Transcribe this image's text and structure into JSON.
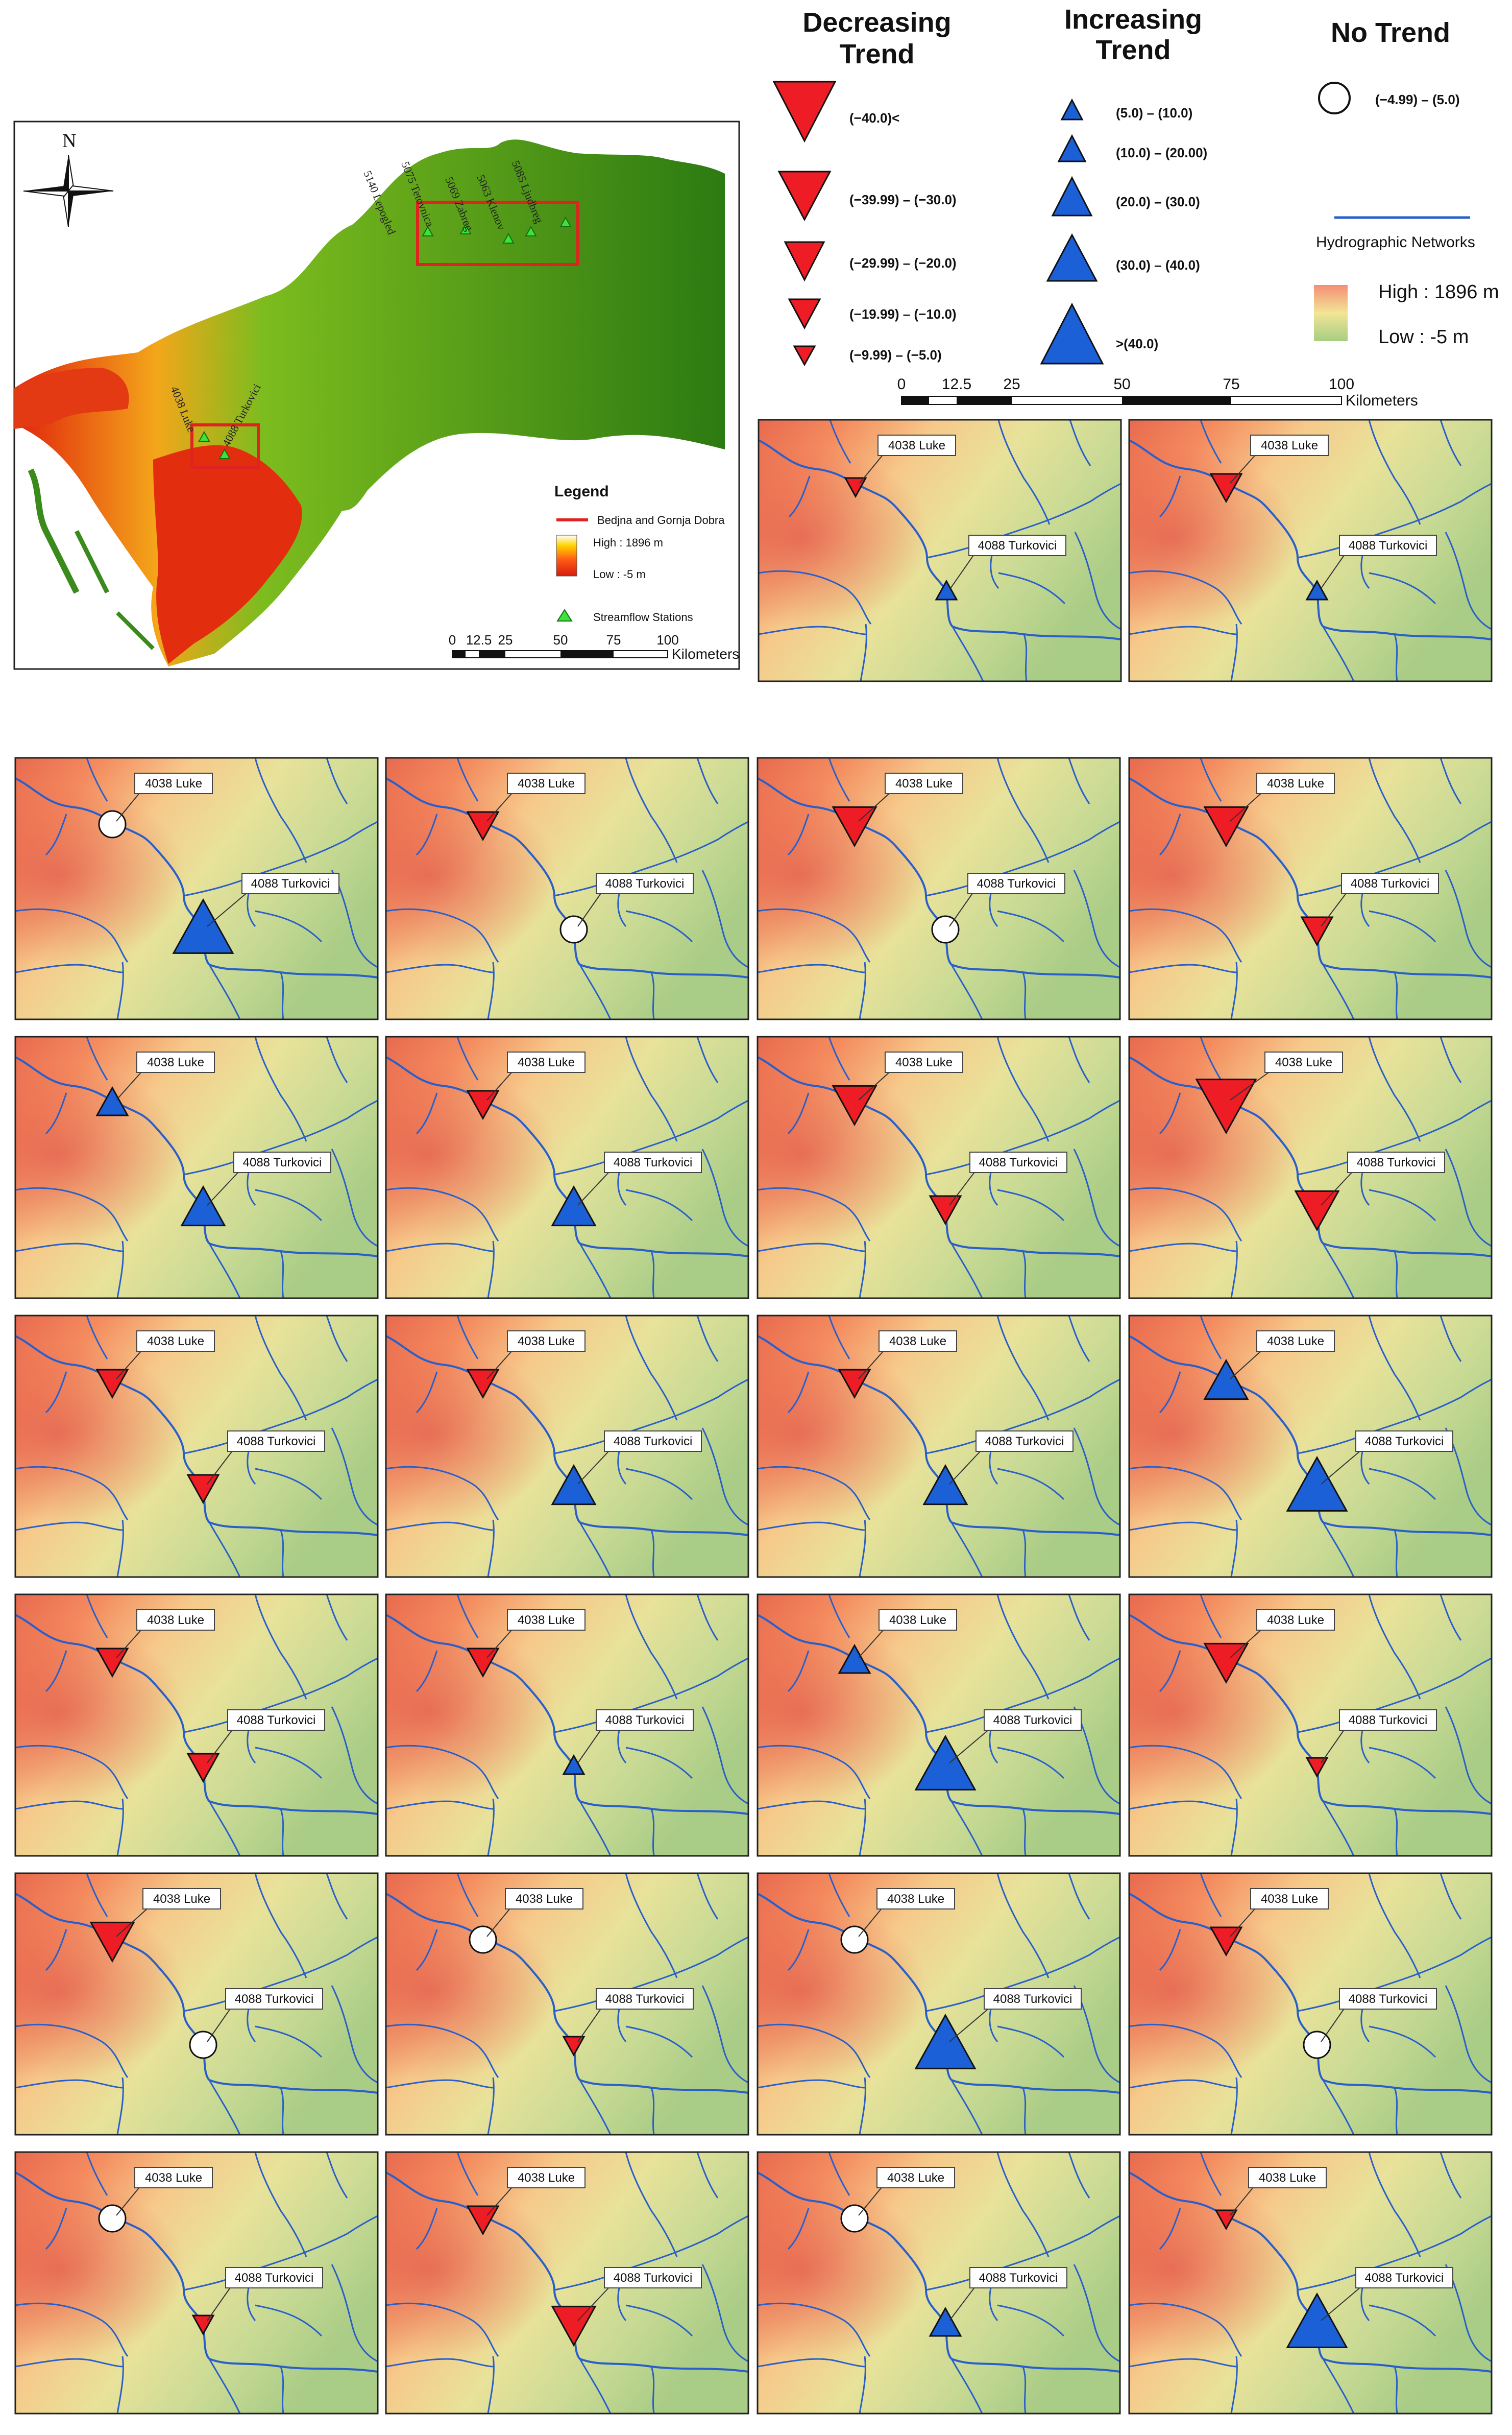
{
  "overview": {
    "north_label": "N",
    "legend_title": "Legend",
    "legend_line_label": "Bedjna and Gornja Dobra",
    "legend_high": "High : 1896 m",
    "legend_low": "Low : -5 m",
    "legend_station": "Streamflow Stations",
    "scale_ticks": [
      "0",
      "12.5",
      "25",
      "50",
      "75",
      "100"
    ],
    "scale_unit": "Kilometers",
    "stations": [
      "5140 Lepogled",
      "5075 Tetovnica",
      "5063 Klenov",
      "5069 Zabreg",
      "5085 Ljudbreg",
      "4038 Luke",
      "4088 Turkovici"
    ]
  },
  "trend_legend": {
    "decreasing_title": [
      "Decreasing",
      "Trend"
    ],
    "increasing_title": [
      "Increasing",
      "Trend"
    ],
    "notrend_title": "No Trend",
    "decreasing": [
      "(−40.0)<",
      "(−39.99) – (−30.0)",
      "(−29.99) – (−20.0)",
      "(−19.99) – (−10.0)",
      "(−9.99) – (−5.0)"
    ],
    "increasing": [
      "(5.0) – (10.0)",
      "(10.0) – (20.00)",
      "(20.0) – (30.0)",
      "(30.0) – (40.0)",
      ">(40.0)"
    ],
    "notrend": "(−4.99) – (5.0)",
    "hydro_label": "Hydrographic Networks",
    "high_label": "High : 1896 m",
    "low_label": "Low : -5 m",
    "scale_ticks": [
      "0",
      "12.5",
      "25",
      "50",
      "75",
      "100"
    ],
    "scale_unit": "Kilometers"
  },
  "station_labels": {
    "luke": "4038 Luke",
    "turk": "4088 Turkovici"
  },
  "colors": {
    "decrease": "#ee1c24",
    "increase": "#1c60d8",
    "notrend": "#ffffff",
    "river": "#2a5fc9",
    "legend_line": "#e0231f"
  },
  "panels": [
    {
      "luke": "d1",
      "turk": "u1"
    },
    {
      "luke": "d2",
      "turk": "u1"
    },
    {
      "luke": "n",
      "turk": "u4"
    },
    {
      "luke": "d2",
      "turk": "n"
    },
    {
      "luke": "d3",
      "turk": "n"
    },
    {
      "luke": "d3",
      "turk": "d2"
    },
    {
      "luke": "u2",
      "turk": "u3"
    },
    {
      "luke": "d2",
      "turk": "u3"
    },
    {
      "luke": "d3",
      "turk": "d2"
    },
    {
      "luke": "d4",
      "turk": "d3"
    },
    {
      "luke": "d2",
      "turk": "d2"
    },
    {
      "luke": "d2",
      "turk": "u3"
    },
    {
      "luke": "d2",
      "turk": "u3"
    },
    {
      "luke": "u3",
      "turk": "u4"
    },
    {
      "luke": "d2",
      "turk": "d2"
    },
    {
      "luke": "d2",
      "turk": "u1"
    },
    {
      "luke": "u2",
      "turk": "u4"
    },
    {
      "luke": "d3",
      "turk": "d1"
    },
    {
      "luke": "d3",
      "turk": "n"
    },
    {
      "luke": "n",
      "turk": "d1"
    },
    {
      "luke": "n",
      "turk": "u4"
    },
    {
      "luke": "d2",
      "turk": "n"
    },
    {
      "luke": "n",
      "turk": "d1"
    },
    {
      "luke": "d2",
      "turk": "d3"
    },
    {
      "luke": "n",
      "turk": "u2"
    },
    {
      "luke": "d1",
      "turk": "u4"
    }
  ]
}
